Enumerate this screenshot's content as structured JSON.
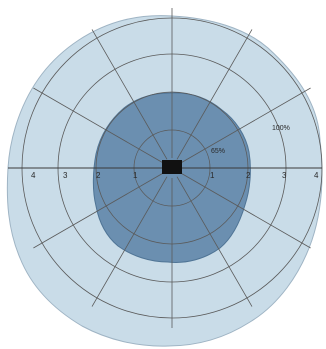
{
  "diagram": {
    "labels": {
      "outer": "100%",
      "inner": "65%"
    },
    "axis_ticks_left": [
      "4",
      "3",
      "2",
      "1"
    ],
    "axis_ticks_right": [
      "1",
      "2",
      "3",
      "4"
    ],
    "colors": {
      "outer_region": "#c9dce8",
      "inner_region": "#6b8fb0",
      "grid_lines": "#5a5a5a",
      "center_marker": "#111111"
    }
  }
}
